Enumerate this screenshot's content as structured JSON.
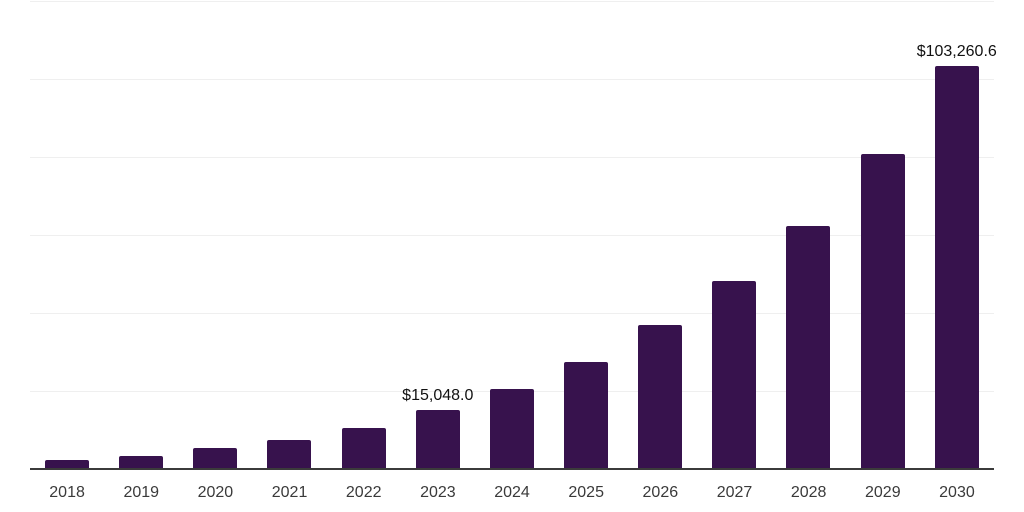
{
  "chart_data": {
    "type": "bar",
    "title": "",
    "xlabel": "",
    "ylabel": "",
    "categories": [
      "2018",
      "2019",
      "2020",
      "2021",
      "2022",
      "2023",
      "2024",
      "2025",
      "2026",
      "2027",
      "2028",
      "2029",
      "2030"
    ],
    "values": [
      2200,
      3450,
      5350,
      7550,
      10450,
      15048.0,
      20500,
      27500,
      36800,
      48300,
      62400,
      80700,
      103260.6
    ],
    "data_labels": [
      "",
      "",
      "",
      "",
      "",
      "$15,048.0",
      "",
      "",
      "",
      "",
      "",
      "",
      "$103,260.6"
    ],
    "ylim": [
      0,
      120000
    ],
    "gridline_interval": 20000,
    "grid": true,
    "legend": false,
    "colors": {
      "bar": "#37124d",
      "gridline": "#efefef",
      "axis_line": "#3b3b3b",
      "data_label": "#111111",
      "tick_label": "#3a3a3a",
      "background": "#ffffff"
    }
  }
}
